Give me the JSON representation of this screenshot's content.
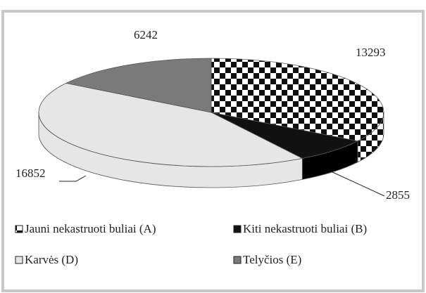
{
  "chart_data": {
    "type": "pie",
    "categories": [
      "Jauni nekastruoti buliai (A)",
      "Kiti nekastruoti buliai (B)",
      "Karvės (D)",
      "Telyčios (E)"
    ],
    "values": [
      13293,
      2855,
      16852,
      6242
    ],
    "colors": [
      "#111111",
      "#111111",
      "#e6e6e6",
      "#7a7a7a"
    ],
    "patterns": [
      "checkerboard",
      "solid",
      "solid",
      "solid"
    ],
    "legend": "bottom"
  }
}
